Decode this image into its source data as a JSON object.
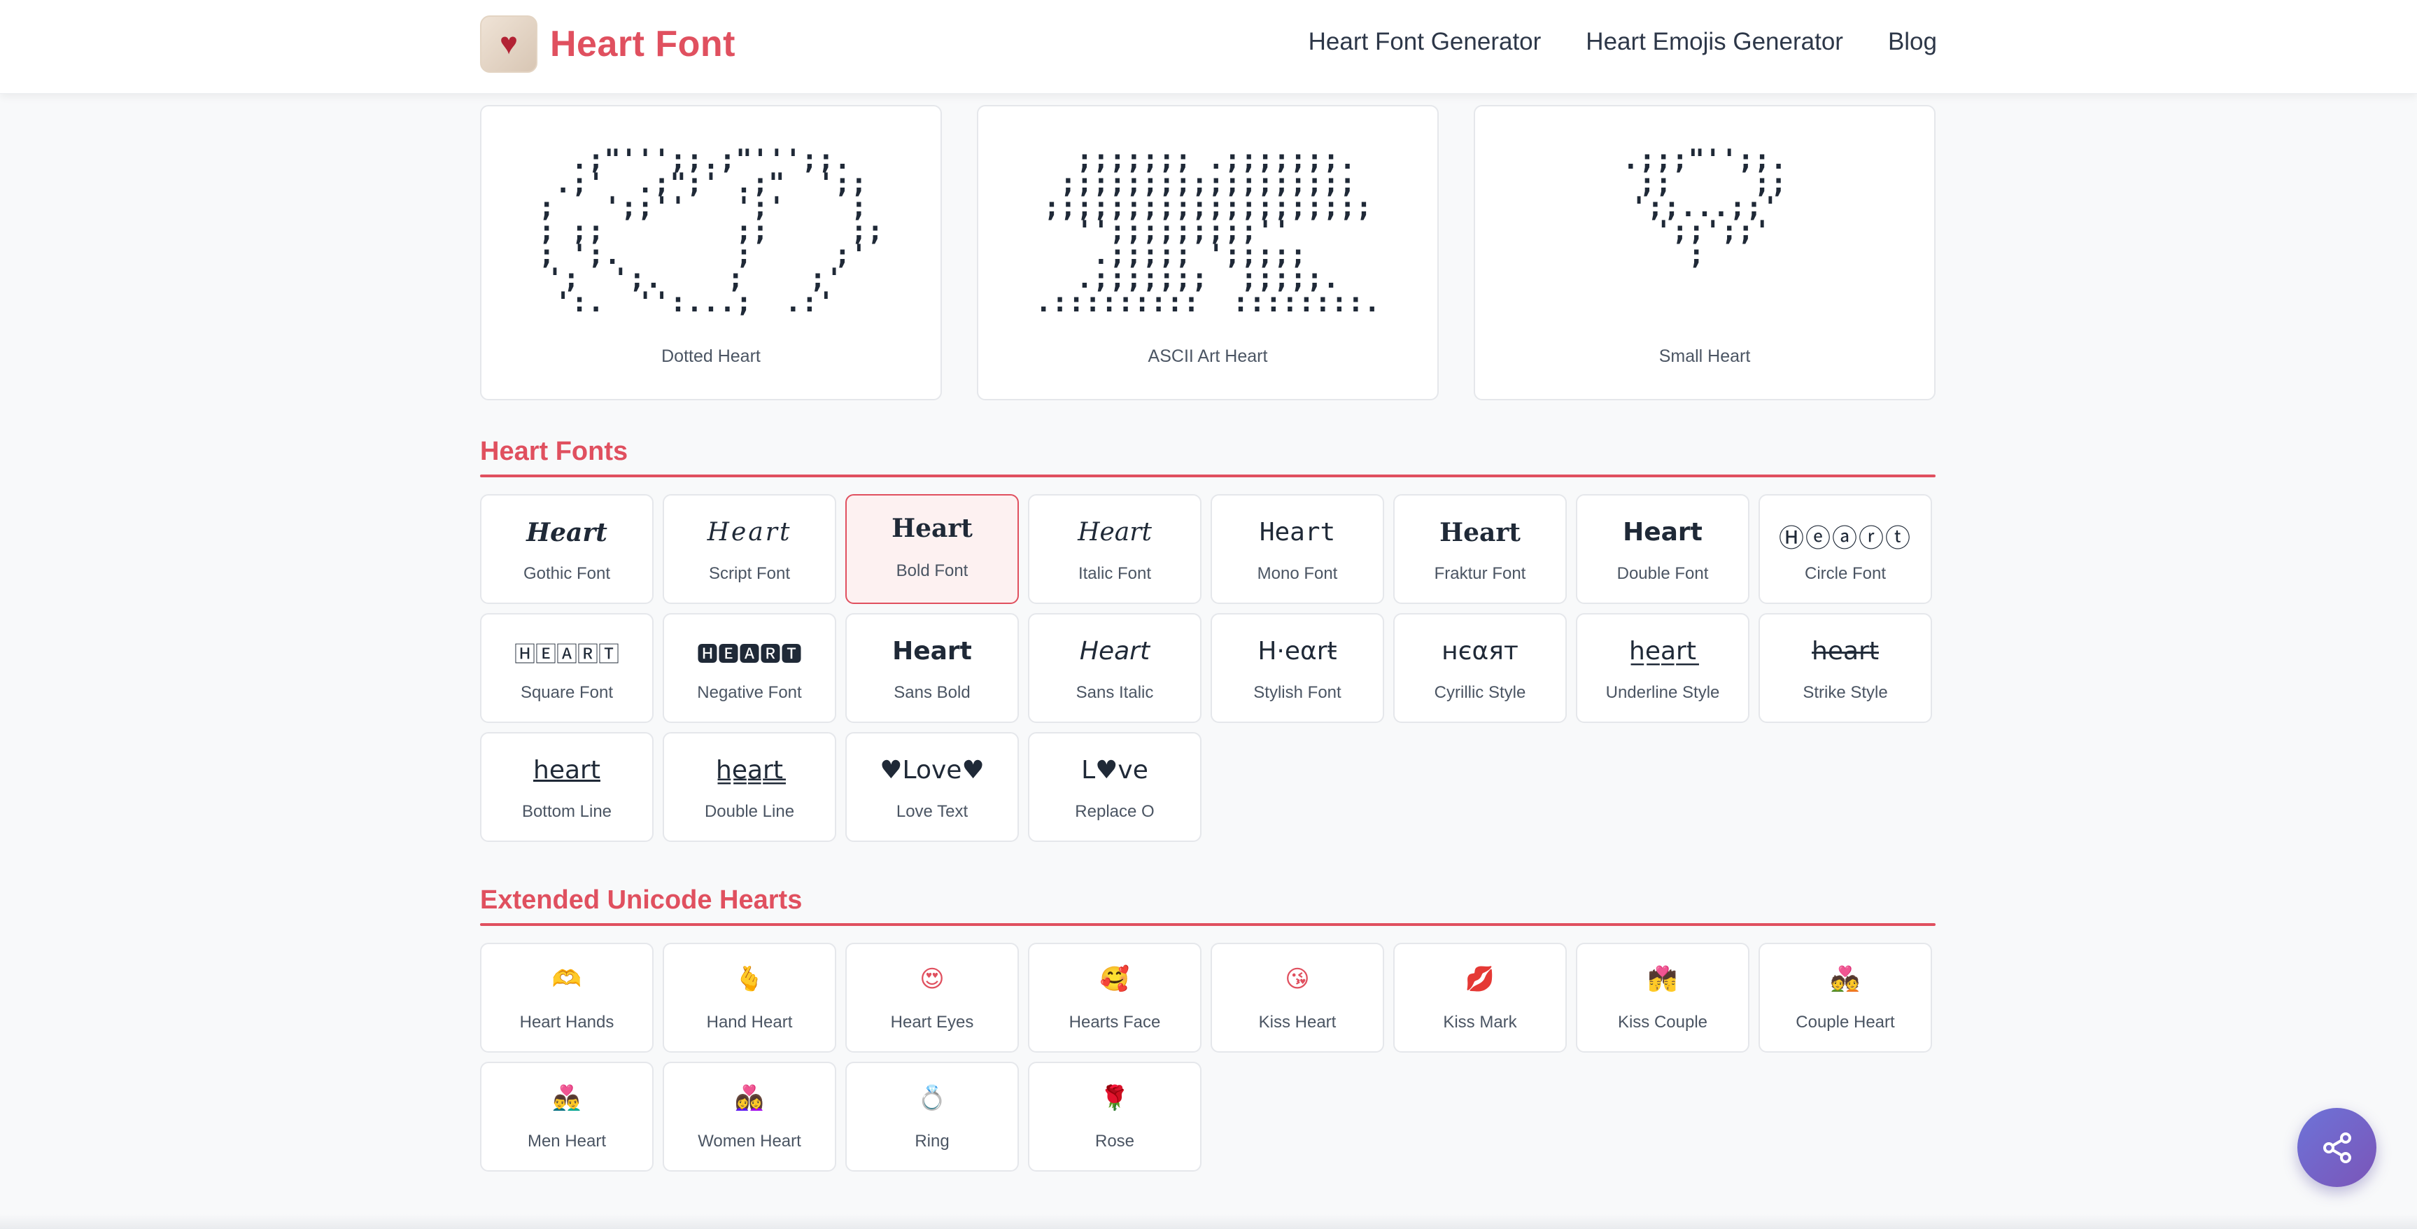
{
  "header": {
    "logo_icon": "heart-wreath-logo",
    "title": "Heart Font",
    "nav": [
      "Heart Font Generator",
      "Heart Emojis Generator",
      "Blog"
    ]
  },
  "ascii_cards": [
    {
      "label": "Dotted Heart",
      "art": "  .;\"''';;.;\"''';;.  \n .;'  .;\";' .;\"  ';; \n;   ';;''   ';'    ; \n; ;;        ;;     ;;\n; ';.       ;     ;' \n';  ';.    ;    ;'  \n ':.  '':...;  .:'   "
    },
    {
      "label": "ASCII Art Heart",
      "art": "  ;;;;;;; .;;;;;;;. \n ;;;;;;;;;;;;;;;;;; \n;;;;;;;;;;;;;;;;;;;;\n  '';;;;;;;;;''     \n   .;;;;; ';;;;;    \n  .;;;;;;;  ;;;;;.  \n.:::::::::  ::::::::."
    },
    {
      "label": "Small Heart",
      "art": ".;;;\"'';;.\n ;;     ;;\n';;...;;'\n ';;';;'\n  ;   "
    }
  ],
  "heart_fonts": {
    "title": "Heart Fonts",
    "items": [
      {
        "sample": "Heart",
        "label": "Gothic Font",
        "style": "f-gothic"
      },
      {
        "sample": "Heart",
        "label": "Script Font",
        "style": "f-script"
      },
      {
        "sample": "Heart",
        "label": "Bold Font",
        "style": "f-bold",
        "selected": true
      },
      {
        "sample": "Heart",
        "label": "Italic Font",
        "style": "f-italic"
      },
      {
        "sample": "Heart",
        "label": "Mono Font",
        "style": "f-mono"
      },
      {
        "sample": "Heart",
        "label": "Fraktur Font",
        "style": "f-fraktur"
      },
      {
        "sample": "Heart",
        "label": "Double Font",
        "style": "f-double"
      },
      {
        "sample": "Ⓗⓔⓐⓡⓣ",
        "label": "Circle Font",
        "style": "f-circle"
      },
      {
        "sample": "🄷🄴🄰🅁🅃",
        "label": "Square Font",
        "style": "f-square"
      },
      {
        "sample": "🅷🅴🅰🆁🆃",
        "label": "Negative Font",
        "style": "f-negative"
      },
      {
        "sample": "Heart",
        "label": "Sans Bold",
        "style": "f-sansbold"
      },
      {
        "sample": "Heart",
        "label": "Sans Italic",
        "style": "f-sansitalic"
      },
      {
        "sample": "H·eαrŧ",
        "label": "Stylish Font",
        "style": "f-stylish"
      },
      {
        "sample": "нєαят",
        "label": "Cyrillic Style",
        "style": "f-cyrillic"
      },
      {
        "sample": "h̲e̲a̲r̲t̲",
        "label": "Underline Style",
        "style": "f-underline"
      },
      {
        "sample": "h̶e̶a̶r̶t̶",
        "label": "Strike Style",
        "style": "f-strike"
      },
      {
        "sample": "heart",
        "label": "Bottom Line",
        "style": "f-bottom"
      },
      {
        "sample": "h̳e̳a̳r̳t̳",
        "label": "Double Line",
        "style": "f-dline"
      },
      {
        "sample": "♥Love♥",
        "label": "Love Text",
        "style": "f-love"
      },
      {
        "sample": "L♥ve",
        "label": "Replace O",
        "style": "f-replace"
      }
    ]
  },
  "extended_hearts": {
    "title": "Extended Unicode Hearts",
    "items": [
      {
        "emoji": "🫶",
        "label": "Heart Hands"
      },
      {
        "emoji": "🫰",
        "label": "Hand Heart"
      },
      {
        "emoji": "😍",
        "label": "Heart Eyes"
      },
      {
        "emoji": "🥰",
        "label": "Hearts Face"
      },
      {
        "emoji": "😘",
        "label": "Kiss Heart"
      },
      {
        "emoji": "💋",
        "label": "Kiss Mark"
      },
      {
        "emoji": "💏",
        "label": "Kiss Couple"
      },
      {
        "emoji": "💑",
        "label": "Couple Heart"
      },
      {
        "emoji": "👨‍❤️‍👨",
        "label": "Men Heart"
      },
      {
        "emoji": "👩‍❤️‍👩",
        "label": "Women Heart"
      },
      {
        "emoji": "💍",
        "label": "Ring"
      },
      {
        "emoji": "🌹",
        "label": "Rose"
      }
    ]
  },
  "share_button": {
    "icon": "share-icon"
  },
  "colors": {
    "accent": "#e0505f",
    "fab_start": "#6d73d8",
    "fab_end": "#7b55b8"
  }
}
